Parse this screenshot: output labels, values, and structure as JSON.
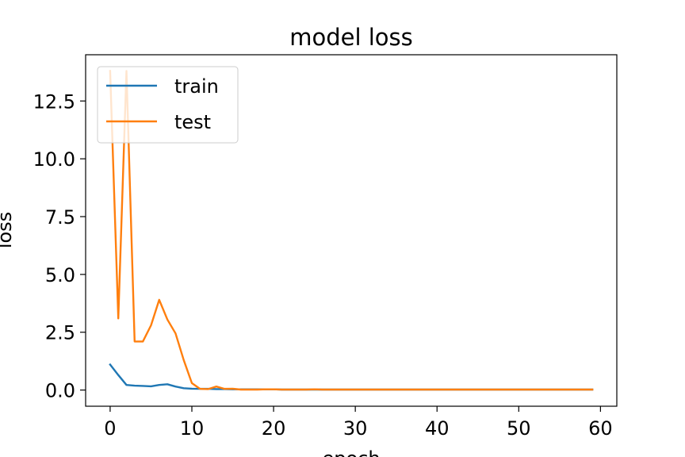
{
  "chart_data": {
    "type": "line",
    "title": "model loss",
    "xlabel": "epoch",
    "ylabel": "loss",
    "xlim": [
      -3,
      62
    ],
    "ylim": [
      -0.7,
      14.5
    ],
    "xticks": [
      0,
      10,
      20,
      30,
      40,
      50,
      60
    ],
    "xtick_labels": [
      "0",
      "10",
      "20",
      "30",
      "40",
      "50",
      "60"
    ],
    "yticks": [
      0,
      2.5,
      5,
      7.5,
      10,
      12.5
    ],
    "ytick_labels": [
      "0.0",
      "2.5",
      "5.0",
      "7.5",
      "10.0",
      "12.5"
    ],
    "grid": false,
    "legend_position": "upper-left",
    "series": [
      {
        "name": "train",
        "color": "#1f77b4",
        "x": [
          0,
          1,
          2,
          3,
          4,
          5,
          6,
          7,
          8,
          9,
          10,
          11,
          12,
          13,
          14,
          15,
          16,
          17,
          18,
          19,
          20,
          21,
          22,
          23,
          24,
          25,
          26,
          27,
          28,
          29,
          30,
          31,
          32,
          33,
          34,
          35,
          36,
          37,
          38,
          39,
          40,
          41,
          42,
          43,
          44,
          45,
          46,
          47,
          48,
          49,
          50,
          51,
          52,
          53,
          54,
          55,
          56,
          57,
          58,
          59
        ],
        "values": [
          1.1,
          0.65,
          0.22,
          0.19,
          0.18,
          0.16,
          0.22,
          0.25,
          0.15,
          0.08,
          0.06,
          0.05,
          0.05,
          0.04,
          0.04,
          0.03,
          0.03,
          0.03,
          0.03,
          0.03,
          0.03,
          0.02,
          0.02,
          0.02,
          0.02,
          0.02,
          0.02,
          0.02,
          0.02,
          0.02,
          0.02,
          0.02,
          0.02,
          0.02,
          0.02,
          0.02,
          0.02,
          0.02,
          0.02,
          0.02,
          0.02,
          0.02,
          0.02,
          0.02,
          0.02,
          0.02,
          0.02,
          0.02,
          0.02,
          0.02,
          0.02,
          0.02,
          0.02,
          0.02,
          0.02,
          0.02,
          0.02,
          0.02,
          0.02,
          0.02
        ]
      },
      {
        "name": "test",
        "color": "#ff7f0e",
        "x": [
          0,
          1,
          2,
          3,
          4,
          5,
          6,
          7,
          8,
          9,
          10,
          11,
          12,
          13,
          14,
          15,
          16,
          17,
          18,
          19,
          20,
          21,
          22,
          23,
          24,
          25,
          26,
          27,
          28,
          29,
          30,
          31,
          32,
          33,
          34,
          35,
          36,
          37,
          38,
          39,
          40,
          41,
          42,
          43,
          44,
          45,
          46,
          47,
          48,
          49,
          50,
          51,
          52,
          53,
          54,
          55,
          56,
          57,
          58,
          59
        ],
        "values": [
          13.8,
          3.1,
          13.8,
          2.1,
          2.1,
          2.8,
          3.9,
          3.05,
          2.45,
          1.3,
          0.3,
          0.05,
          0.04,
          0.15,
          0.05,
          0.06,
          0.02,
          0.02,
          0.02,
          0.03,
          0.03,
          0.02,
          0.02,
          0.02,
          0.02,
          0.03,
          0.02,
          0.02,
          0.02,
          0.02,
          0.02,
          0.02,
          0.02,
          0.02,
          0.02,
          0.02,
          0.02,
          0.02,
          0.02,
          0.02,
          0.02,
          0.02,
          0.02,
          0.02,
          0.02,
          0.02,
          0.02,
          0.02,
          0.02,
          0.02,
          0.02,
          0.02,
          0.02,
          0.02,
          0.02,
          0.02,
          0.02,
          0.02,
          0.02,
          0.02
        ]
      }
    ]
  }
}
